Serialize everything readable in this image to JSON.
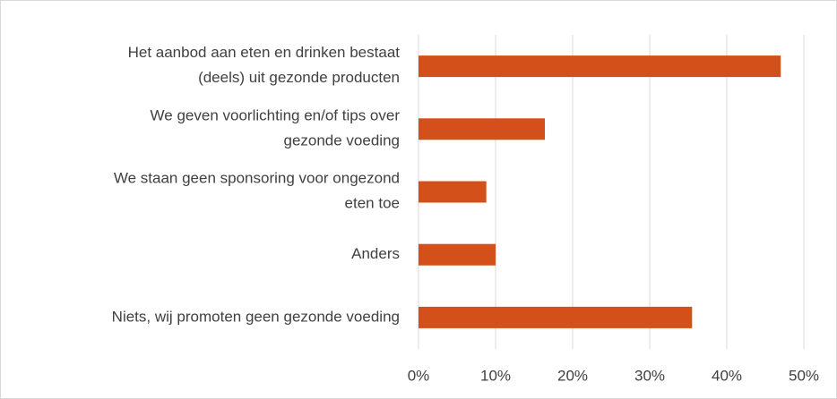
{
  "chart_data": {
    "type": "bar",
    "orientation": "horizontal",
    "categories": [
      "Het aanbod aan eten en drinken bestaat\n(deels) uit gezonde producten",
      "We geven voorlichting en/of tips over\ngezonde voeding",
      "We staan geen sponsoring voor ongezond\neten toe",
      "Anders",
      "Niets, wij promoten geen gezonde voeding"
    ],
    "values": [
      47,
      16.4,
      8.8,
      10,
      35.5
    ],
    "color": "#d4501a",
    "xlim": [
      0,
      50
    ],
    "xticks": [
      {
        "value": 0,
        "label": "0%"
      },
      {
        "value": 10,
        "label": "10%"
      },
      {
        "value": 20,
        "label": "20%"
      },
      {
        "value": 30,
        "label": "30%"
      },
      {
        "value": 40,
        "label": "40%"
      },
      {
        "value": 50,
        "label": "50%"
      }
    ],
    "grid": true
  }
}
